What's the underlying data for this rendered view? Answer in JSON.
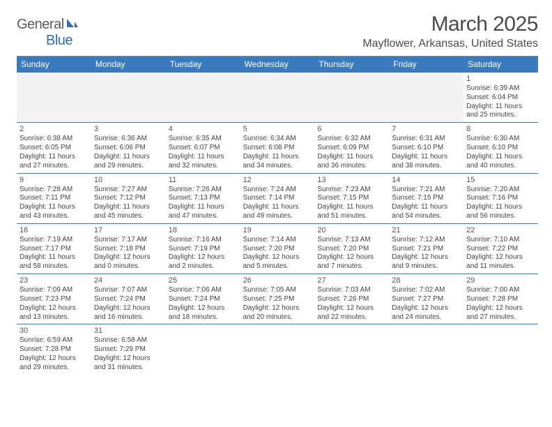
{
  "brand": {
    "name_gray": "General",
    "name_blue": "Blue"
  },
  "title": "March 2025",
  "location": "Mayflower, Arkansas, United States",
  "colors": {
    "header_bg": "#3a7bbf",
    "header_text": "#ffffff",
    "row_border": "#3a7bbf",
    "blank_bg": "#f2f2f2",
    "text": "#444444",
    "title_text": "#4a4a4a",
    "logo_gray": "#5a5a5a",
    "logo_blue": "#2f6fb0"
  },
  "day_headers": [
    "Sunday",
    "Monday",
    "Tuesday",
    "Wednesday",
    "Thursday",
    "Friday",
    "Saturday"
  ],
  "weeks": [
    [
      null,
      null,
      null,
      null,
      null,
      null,
      {
        "n": "1",
        "sr": "Sunrise: 6:39 AM",
        "ss": "Sunset: 6:04 PM",
        "d1": "Daylight: 11 hours",
        "d2": "and 25 minutes."
      }
    ],
    [
      {
        "n": "2",
        "sr": "Sunrise: 6:38 AM",
        "ss": "Sunset: 6:05 PM",
        "d1": "Daylight: 11 hours",
        "d2": "and 27 minutes."
      },
      {
        "n": "3",
        "sr": "Sunrise: 6:36 AM",
        "ss": "Sunset: 6:06 PM",
        "d1": "Daylight: 11 hours",
        "d2": "and 29 minutes."
      },
      {
        "n": "4",
        "sr": "Sunrise: 6:35 AM",
        "ss": "Sunset: 6:07 PM",
        "d1": "Daylight: 11 hours",
        "d2": "and 32 minutes."
      },
      {
        "n": "5",
        "sr": "Sunrise: 6:34 AM",
        "ss": "Sunset: 6:08 PM",
        "d1": "Daylight: 11 hours",
        "d2": "and 34 minutes."
      },
      {
        "n": "6",
        "sr": "Sunrise: 6:32 AM",
        "ss": "Sunset: 6:09 PM",
        "d1": "Daylight: 11 hours",
        "d2": "and 36 minutes."
      },
      {
        "n": "7",
        "sr": "Sunrise: 6:31 AM",
        "ss": "Sunset: 6:10 PM",
        "d1": "Daylight: 11 hours",
        "d2": "and 38 minutes."
      },
      {
        "n": "8",
        "sr": "Sunrise: 6:30 AM",
        "ss": "Sunset: 6:10 PM",
        "d1": "Daylight: 11 hours",
        "d2": "and 40 minutes."
      }
    ],
    [
      {
        "n": "9",
        "sr": "Sunrise: 7:28 AM",
        "ss": "Sunset: 7:11 PM",
        "d1": "Daylight: 11 hours",
        "d2": "and 43 minutes."
      },
      {
        "n": "10",
        "sr": "Sunrise: 7:27 AM",
        "ss": "Sunset: 7:12 PM",
        "d1": "Daylight: 11 hours",
        "d2": "and 45 minutes."
      },
      {
        "n": "11",
        "sr": "Sunrise: 7:26 AM",
        "ss": "Sunset: 7:13 PM",
        "d1": "Daylight: 11 hours",
        "d2": "and 47 minutes."
      },
      {
        "n": "12",
        "sr": "Sunrise: 7:24 AM",
        "ss": "Sunset: 7:14 PM",
        "d1": "Daylight: 11 hours",
        "d2": "and 49 minutes."
      },
      {
        "n": "13",
        "sr": "Sunrise: 7:23 AM",
        "ss": "Sunset: 7:15 PM",
        "d1": "Daylight: 11 hours",
        "d2": "and 51 minutes."
      },
      {
        "n": "14",
        "sr": "Sunrise: 7:21 AM",
        "ss": "Sunset: 7:15 PM",
        "d1": "Daylight: 11 hours",
        "d2": "and 54 minutes."
      },
      {
        "n": "15",
        "sr": "Sunrise: 7:20 AM",
        "ss": "Sunset: 7:16 PM",
        "d1": "Daylight: 11 hours",
        "d2": "and 56 minutes."
      }
    ],
    [
      {
        "n": "16",
        "sr": "Sunrise: 7:19 AM",
        "ss": "Sunset: 7:17 PM",
        "d1": "Daylight: 11 hours",
        "d2": "and 58 minutes."
      },
      {
        "n": "17",
        "sr": "Sunrise: 7:17 AM",
        "ss": "Sunset: 7:18 PM",
        "d1": "Daylight: 12 hours",
        "d2": "and 0 minutes."
      },
      {
        "n": "18",
        "sr": "Sunrise: 7:16 AM",
        "ss": "Sunset: 7:19 PM",
        "d1": "Daylight: 12 hours",
        "d2": "and 2 minutes."
      },
      {
        "n": "19",
        "sr": "Sunrise: 7:14 AM",
        "ss": "Sunset: 7:20 PM",
        "d1": "Daylight: 12 hours",
        "d2": "and 5 minutes."
      },
      {
        "n": "20",
        "sr": "Sunrise: 7:13 AM",
        "ss": "Sunset: 7:20 PM",
        "d1": "Daylight: 12 hours",
        "d2": "and 7 minutes."
      },
      {
        "n": "21",
        "sr": "Sunrise: 7:12 AM",
        "ss": "Sunset: 7:21 PM",
        "d1": "Daylight: 12 hours",
        "d2": "and 9 minutes."
      },
      {
        "n": "22",
        "sr": "Sunrise: 7:10 AM",
        "ss": "Sunset: 7:22 PM",
        "d1": "Daylight: 12 hours",
        "d2": "and 11 minutes."
      }
    ],
    [
      {
        "n": "23",
        "sr": "Sunrise: 7:09 AM",
        "ss": "Sunset: 7:23 PM",
        "d1": "Daylight: 12 hours",
        "d2": "and 13 minutes."
      },
      {
        "n": "24",
        "sr": "Sunrise: 7:07 AM",
        "ss": "Sunset: 7:24 PM",
        "d1": "Daylight: 12 hours",
        "d2": "and 16 minutes."
      },
      {
        "n": "25",
        "sr": "Sunrise: 7:06 AM",
        "ss": "Sunset: 7:24 PM",
        "d1": "Daylight: 12 hours",
        "d2": "and 18 minutes."
      },
      {
        "n": "26",
        "sr": "Sunrise: 7:05 AM",
        "ss": "Sunset: 7:25 PM",
        "d1": "Daylight: 12 hours",
        "d2": "and 20 minutes."
      },
      {
        "n": "27",
        "sr": "Sunrise: 7:03 AM",
        "ss": "Sunset: 7:26 PM",
        "d1": "Daylight: 12 hours",
        "d2": "and 22 minutes."
      },
      {
        "n": "28",
        "sr": "Sunrise: 7:02 AM",
        "ss": "Sunset: 7:27 PM",
        "d1": "Daylight: 12 hours",
        "d2": "and 24 minutes."
      },
      {
        "n": "29",
        "sr": "Sunrise: 7:00 AM",
        "ss": "Sunset: 7:28 PM",
        "d1": "Daylight: 12 hours",
        "d2": "and 27 minutes."
      }
    ],
    [
      {
        "n": "30",
        "sr": "Sunrise: 6:59 AM",
        "ss": "Sunset: 7:28 PM",
        "d1": "Daylight: 12 hours",
        "d2": "and 29 minutes."
      },
      {
        "n": "31",
        "sr": "Sunrise: 6:58 AM",
        "ss": "Sunset: 7:29 PM",
        "d1": "Daylight: 12 hours",
        "d2": "and 31 minutes."
      },
      null,
      null,
      null,
      null,
      null
    ]
  ]
}
